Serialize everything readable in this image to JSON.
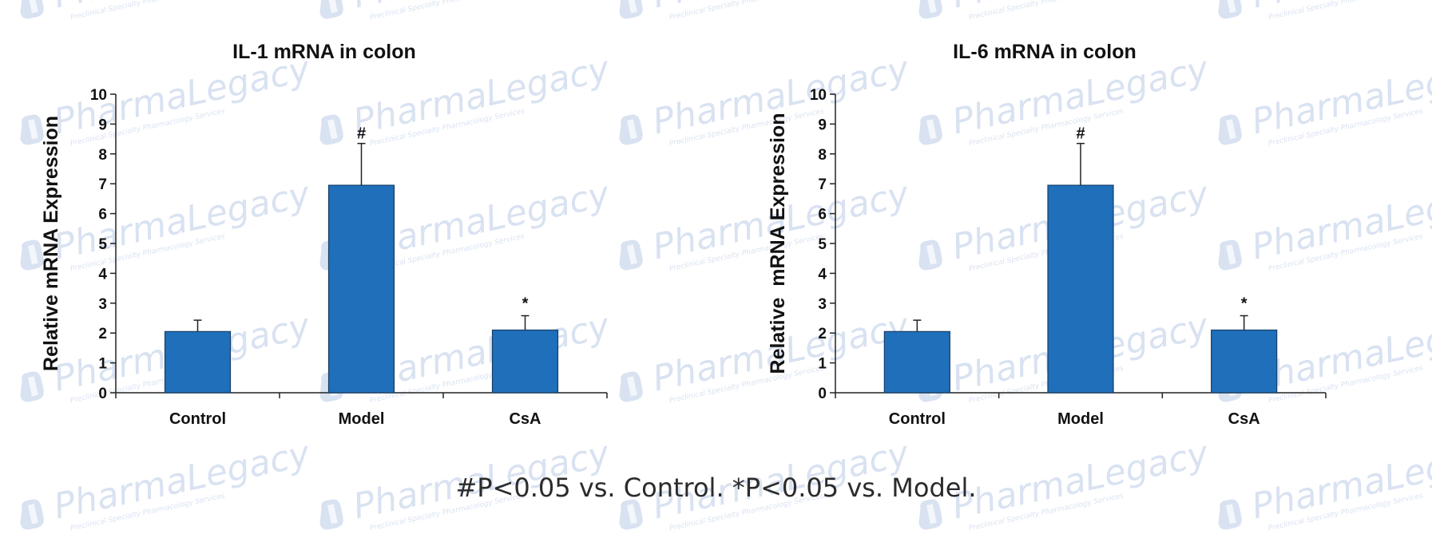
{
  "watermark": {
    "text": "PharmaLegacy",
    "subtitle": "Preclinical Specialty Pharmacology Services",
    "color": "#8ea8d6",
    "icon": "pharmalegacy-logo-icon"
  },
  "footnote": "#P<0.05 vs. Control. *P<0.05 vs. Model.",
  "chart_data": [
    {
      "type": "bar",
      "title": "IL-1 mRNA in colon",
      "xlabel": "",
      "ylabel": "Relative mRNA Expression",
      "ylim": [
        0,
        10
      ],
      "yticks": [
        0,
        1,
        2,
        3,
        4,
        5,
        6,
        7,
        8,
        9,
        10
      ],
      "categories": [
        "Control",
        "Model",
        "CsA"
      ],
      "values": [
        2.05,
        6.95,
        2.1
      ],
      "error_bars": [
        0.38,
        1.4,
        0.48
      ],
      "significance": [
        "",
        "#",
        "*"
      ],
      "bar_color": "#1f6fba",
      "grid": false,
      "legend": "none"
    },
    {
      "type": "bar",
      "title": "IL-6 mRNA in colon",
      "xlabel": "",
      "ylabel": "Relative  mRNA Expression",
      "ylim": [
        0,
        10
      ],
      "yticks": [
        0,
        1,
        2,
        3,
        4,
        5,
        6,
        7,
        8,
        9,
        10
      ],
      "categories": [
        "Control",
        "Model",
        "CsA"
      ],
      "values": [
        2.05,
        6.95,
        2.1
      ],
      "error_bars": [
        0.38,
        1.4,
        0.48
      ],
      "significance": [
        "",
        "#",
        "*"
      ],
      "bar_color": "#1f6fba",
      "grid": false,
      "legend": "none"
    }
  ]
}
